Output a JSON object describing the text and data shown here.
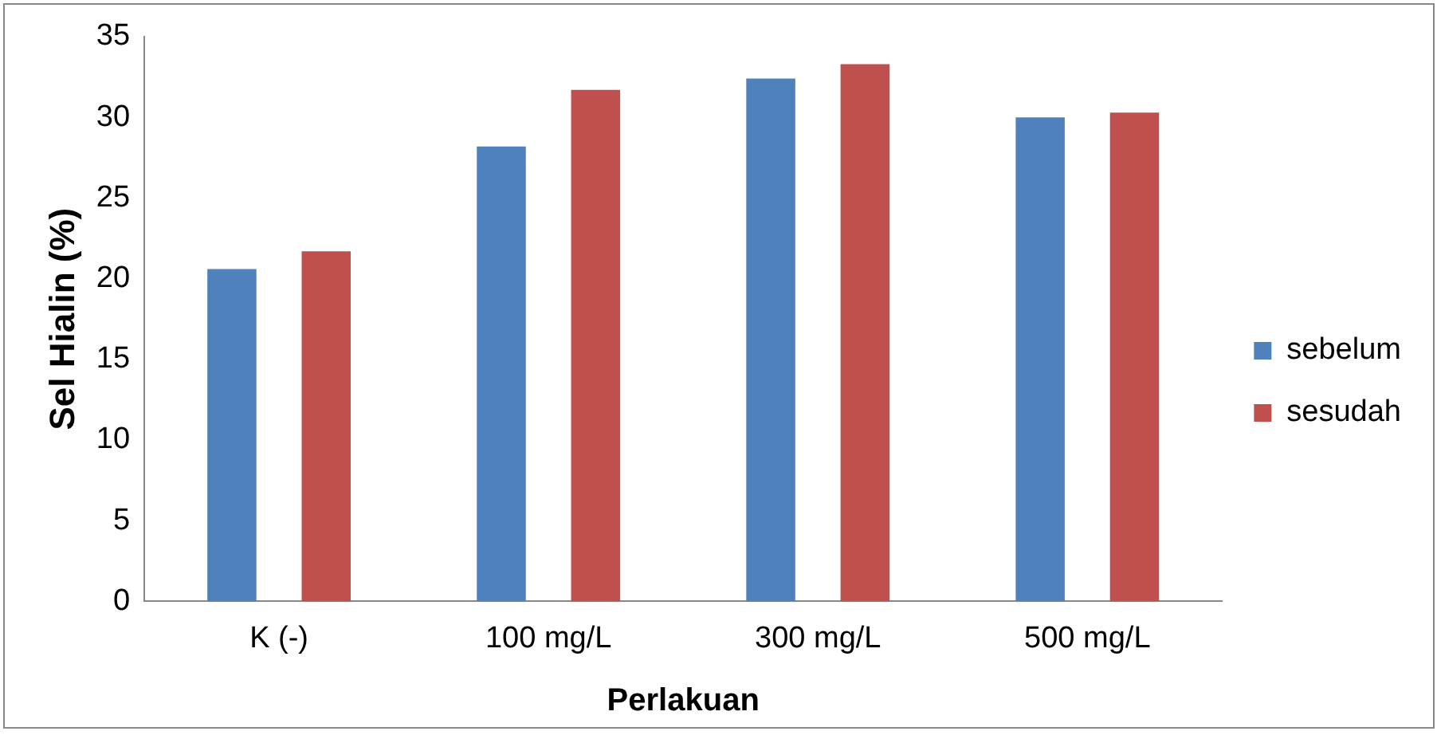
{
  "chart_data": {
    "type": "bar",
    "xlabel": "Perlakuan",
    "ylabel": "Sel Hialin (%)",
    "categories": [
      "K (-)",
      "100 mg/L",
      "300 mg/L",
      "500 mg/L"
    ],
    "series": [
      {
        "name": "sebelum",
        "color": "#4f81bd",
        "values": [
          20.6,
          28.2,
          32.4,
          30.0
        ]
      },
      {
        "name": "sesudah",
        "color": "#c0504d",
        "values": [
          21.7,
          31.7,
          33.3,
          30.3
        ]
      }
    ],
    "ylim": [
      0,
      35
    ],
    "yticks": [
      0,
      5,
      10,
      15,
      20,
      25,
      30,
      35
    ],
    "grid": false,
    "legend": "right"
  }
}
